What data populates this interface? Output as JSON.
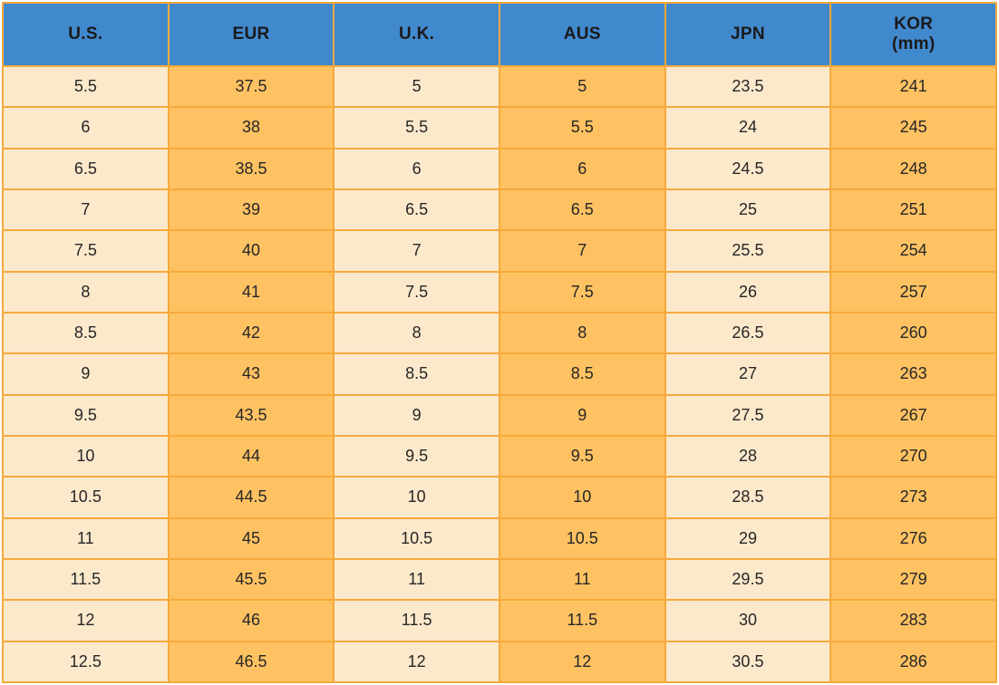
{
  "chart_data": {
    "type": "table",
    "description": "Shoe size conversion table across regions",
    "columns": [
      {
        "label": "U.S."
      },
      {
        "label": "EUR"
      },
      {
        "label": "U.K."
      },
      {
        "label": "AUS"
      },
      {
        "label": "JPN"
      },
      {
        "label": "KOR",
        "sublabel": "(mm)"
      }
    ],
    "rows": [
      [
        "5.5",
        "37.5",
        "5",
        "5",
        "23.5",
        "241"
      ],
      [
        "6",
        "38",
        "5.5",
        "5.5",
        "24",
        "245"
      ],
      [
        "6.5",
        "38.5",
        "6",
        "6",
        "24.5",
        "248"
      ],
      [
        "7",
        "39",
        "6.5",
        "6.5",
        "25",
        "251"
      ],
      [
        "7.5",
        "40",
        "7",
        "7",
        "25.5",
        "254"
      ],
      [
        "8",
        "41",
        "7.5",
        "7.5",
        "26",
        "257"
      ],
      [
        "8.5",
        "42",
        "8",
        "8",
        "26.5",
        "260"
      ],
      [
        "9",
        "43",
        "8.5",
        "8.5",
        "27",
        "263"
      ],
      [
        "9.5",
        "43.5",
        "9",
        "9",
        "27.5",
        "267"
      ],
      [
        "10",
        "44",
        "9.5",
        "9.5",
        "28",
        "270"
      ],
      [
        "10.5",
        "44.5",
        "10",
        "10",
        "28.5",
        "273"
      ],
      [
        "11",
        "45",
        "10.5",
        "10.5",
        "29",
        "276"
      ],
      [
        "11.5",
        "45.5",
        "11",
        "11",
        "29.5",
        "279"
      ],
      [
        "12",
        "46",
        "11.5",
        "11.5",
        "30",
        "283"
      ],
      [
        "12.5",
        "46.5",
        "12",
        "12",
        "30.5",
        "286"
      ]
    ],
    "layout": {
      "grid": true,
      "column_stripes": [
        "cream",
        "orange",
        "cream",
        "orange",
        "cream",
        "orange"
      ]
    }
  },
  "theme": {
    "page_bg": "#FFFFFF",
    "header_bg": "#4189CD",
    "header_text": "#1A1A1A",
    "cell_cream": "#FCE9CC",
    "cell_orange": "#FFC262",
    "border_color": "#F6A93B",
    "body_text": "#262626"
  }
}
